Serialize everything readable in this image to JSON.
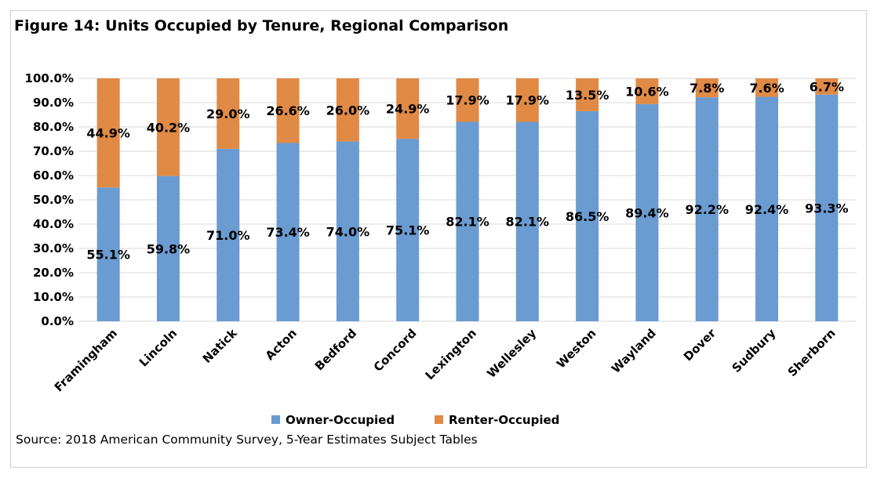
{
  "title": "Figure 14: Units Occupied by Tenure, Regional Comparison",
  "source": "Source: 2018 American Community Survey, 5-Year Estimates Subject Tables",
  "colors": {
    "owner": "#6a9bd1",
    "renter": "#e08a45",
    "grid": "#d9d9d9"
  },
  "chart_data": {
    "type": "bar",
    "stacked": true,
    "categories": [
      "Framingham",
      "Lincoln",
      "Natick",
      "Acton",
      "Bedford",
      "Concord",
      "Lexington",
      "Wellesley",
      "Weston",
      "Wayland",
      "Dover",
      "Sudbury",
      "Sherborn"
    ],
    "series": [
      {
        "name": "Owner-Occupied",
        "values": [
          55.1,
          59.8,
          71.0,
          73.4,
          74.0,
          75.1,
          82.1,
          82.1,
          86.5,
          89.4,
          92.2,
          92.4,
          93.3
        ],
        "labels": [
          "55.1%",
          "59.8%",
          "71.0%",
          "73.4%",
          "74.0%",
          "75.1%",
          "82.1%",
          "82.1%",
          "86.5%",
          "89.4%",
          "92.2%",
          "92.4%",
          "93.3%"
        ]
      },
      {
        "name": "Renter-Occupied",
        "values": [
          44.9,
          40.2,
          29.0,
          26.6,
          26.0,
          24.9,
          17.9,
          17.9,
          13.5,
          10.6,
          7.8,
          7.6,
          6.7
        ],
        "labels": [
          "44.9%",
          "40.2%",
          "29.0%",
          "26.6%",
          "26.0%",
          "24.9%",
          "17.9%",
          "17.9%",
          "13.5%",
          "10.6%",
          "7.8%",
          "7.6%",
          "6.7%"
        ]
      }
    ],
    "yticks": [
      "0.0%",
      "10.0%",
      "20.0%",
      "30.0%",
      "40.0%",
      "50.0%",
      "60.0%",
      "70.0%",
      "80.0%",
      "90.0%",
      "100.0%"
    ],
    "ylim": [
      0,
      100
    ],
    "xlabel": "",
    "ylabel": "",
    "grid": true,
    "legend_position": "bottom"
  }
}
